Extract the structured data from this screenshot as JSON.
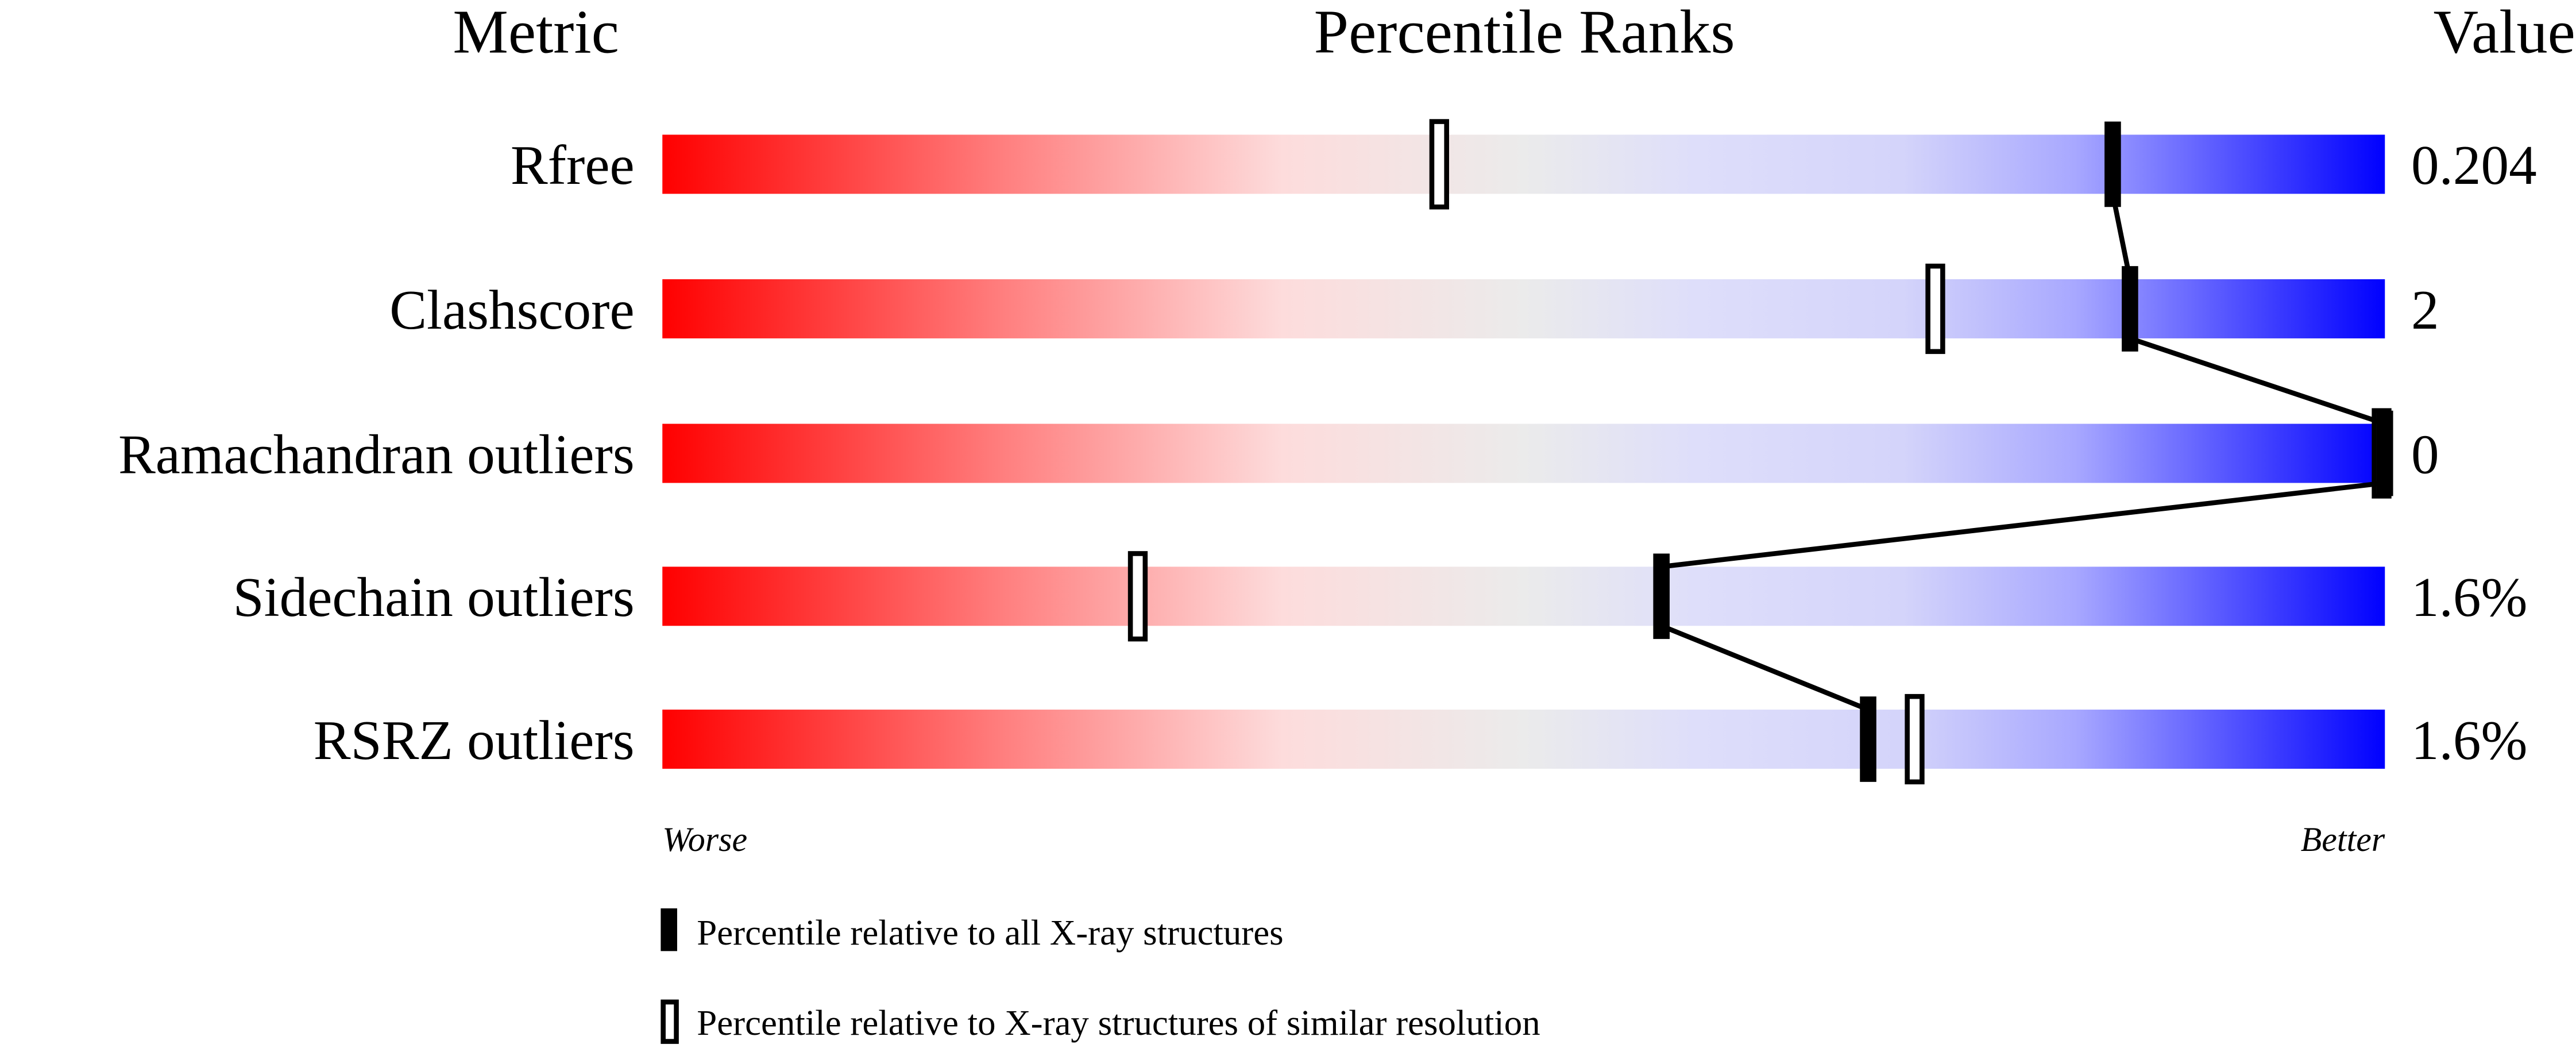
{
  "chart_data": {
    "type": "percentile-bar",
    "headers": {
      "metric": "Metric",
      "ranks": "Percentile Ranks",
      "value": "Value"
    },
    "axis": {
      "left_label": "Worse",
      "right_label": "Better",
      "range": [
        0,
        100
      ]
    },
    "gradient_colors": [
      "#ff0000",
      "#ff8080",
      "#fddcdc",
      "#ebebeb",
      "#dedefa",
      "#d4d4fa",
      "#a8a8ff",
      "#0000ff"
    ],
    "rows": [
      {
        "metric": "Rfree",
        "value": "0.204",
        "percentile_all": 84.2,
        "percentile_similar": 45.1
      },
      {
        "metric": "Clashscore",
        "value": "2",
        "percentile_all": 85.2,
        "percentile_similar": 73.9
      },
      {
        "metric": "Ramachandran outliers",
        "value": "0",
        "percentile_all": 100,
        "percentile_similar": 100
      },
      {
        "metric": "Sidechain outliers",
        "value": "1.6%",
        "percentile_all": 58.0,
        "percentile_similar": 27.6
      },
      {
        "metric": "RSRZ outliers",
        "value": "1.6%",
        "percentile_all": 70.0,
        "percentile_similar": 72.7
      }
    ],
    "legend": [
      {
        "marker": "filled",
        "label": "Percentile relative to all X-ray structures"
      },
      {
        "marker": "open",
        "label": "Percentile relative to X-ray structures of similar resolution"
      }
    ]
  }
}
